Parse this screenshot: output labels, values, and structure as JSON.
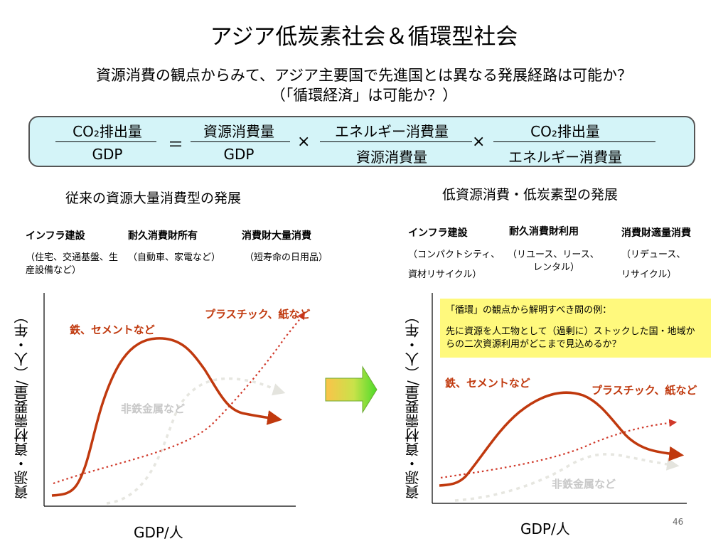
{
  "title": "アジア低炭素社会＆循環型社会",
  "question": "資源消費の観点からみて、アジア主要国で先進国とは異なる発展経路は可能か？",
  "question_sub": "（「循環経済」は可能か？）",
  "equation": {
    "lhs_num": "CO₂排出量",
    "lhs_den": "GDP",
    "equals": "＝",
    "t1_num": "資源消費量",
    "t1_den": "GDP",
    "times1": "×",
    "t2_num": "エネルギー消費量",
    "t2_den": "資源消費量",
    "times2": "×",
    "t3_num": "CO₂排出量",
    "t3_den": "エネルギー消費量"
  },
  "left": {
    "heading": "従来の資源大量消費型の発展",
    "columns": [
      {
        "head": "インフラ建設",
        "sub": "（住宅、交通基盤、生産設備など）"
      },
      {
        "head": "耐久消費財所有",
        "sub": "（自動車、家電など）"
      },
      {
        "head": "消費財大量消費",
        "sub": "（短寿命の日用品）"
      }
    ],
    "ylabel": "資源・資材需要量/（人・年）",
    "xlabel": "GDP/人",
    "label_steel": "鉄、セメントなど",
    "label_plastic": "プラスチック、紙など",
    "label_nonferrous": "非鉄金属など"
  },
  "right": {
    "heading": "低資源消費・低炭素型の発展",
    "columns": [
      {
        "head": "インフラ建設",
        "sub1": "（コンパクトシティ、",
        "sub2": "資材リサイクル）"
      },
      {
        "head": "耐久消費財利用",
        "sub1": "（リユース、リース、",
        "sub2": "レンタル）"
      },
      {
        "head": "消費財適量消費",
        "sub1": "（リデュース、",
        "sub2": "リサイクル）"
      }
    ],
    "ylabel": "資源・資材需要量/（人・年）",
    "xlabel": "GDP/人",
    "label_steel": "鉄、セメントなど",
    "label_plastic": "プラスチック、紙など",
    "label_nonferrous": "非鉄金属など",
    "note_title": "「循環」の観点から解明すべき問の例：",
    "note_body": "先に資源を人工物として（過剰に）ストックした国・地域からの二次資源利用がどこまで見込めるか？"
  },
  "colors": {
    "steel": "#c0390e",
    "plastic": "#d0392a",
    "nonferrous": "#e8e8e2",
    "equation_bg": "#d4f4f8",
    "note_bg": "#fff97d"
  },
  "page_number": "46"
}
